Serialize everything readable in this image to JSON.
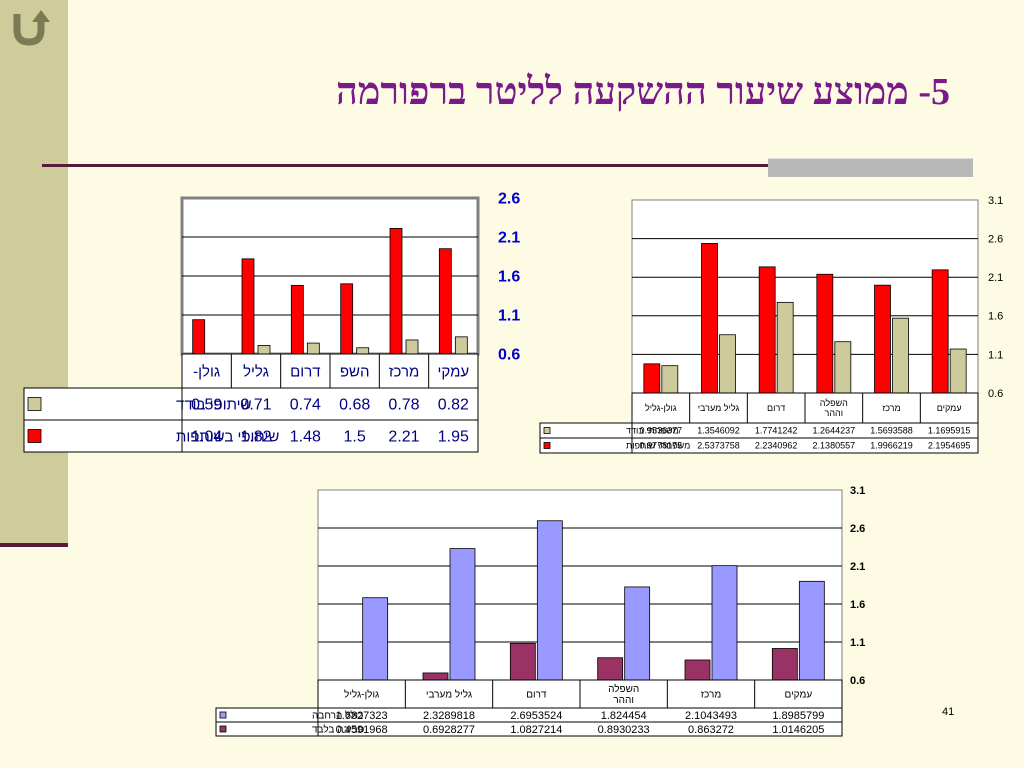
{
  "slide": {
    "title": "5- ממוצע שיעור ההשקעה לליטר ברפורמה",
    "page_number": "41",
    "back_icon": "u-turn-arrow-icon"
  },
  "colors": {
    "red": "#ff0000",
    "beige": "#cdcb9c",
    "lavender": "#9999ff",
    "maroon": "#993366",
    "title": "#7a1a8a"
  },
  "chart_data": [
    {
      "type": "bar",
      "categories": [
        "עמקי",
        "מרכז",
        "השפ",
        "דרום",
        "גליל",
        "גולן-"
      ],
      "series": [
        {
          "name": "שיתופי בודד",
          "values": [
            0.82,
            0.78,
            0.68,
            0.74,
            0.71,
            0.59
          ],
          "value_labels": [
            "0.82",
            "0.78",
            "0.68",
            "0.74",
            "0.71",
            "0.59"
          ]
        },
        {
          "name": "שיתופי בשותפות",
          "values": [
            1.95,
            2.21,
            1.5,
            1.48,
            1.82,
            1.04
          ],
          "value_labels": [
            "1.95",
            "2.21",
            "1.5",
            "1.48",
            "1.82",
            "1.04"
          ]
        }
      ],
      "yticks": [
        "2.6",
        "2.1",
        "1.6",
        "1.1",
        "0.6"
      ],
      "ylim": [
        0.6,
        2.6
      ],
      "legend": "data-table-left",
      "grid": true
    },
    {
      "type": "bar",
      "categories": [
        "עמקים",
        "מרכז",
        "השפלה וההר",
        "דרום",
        "גליל מערבי",
        "גולן-גליל"
      ],
      "series": [
        {
          "name": "משפחתי בודד",
          "values": [
            1.1695915,
            1.5693588,
            1.2644237,
            1.7741242,
            1.3546092,
            0.9536377
          ],
          "value_labels": [
            "1.1695915",
            "1.5693588",
            "1.2644237",
            "1.7741242",
            "1.3546092",
            "0.9536377"
          ]
        },
        {
          "name": "משפחתי שותפות",
          "values": [
            2.1954695,
            1.9966219,
            2.1380557,
            2.2340962,
            2.5373758,
            0.9778175
          ],
          "value_labels": [
            "2.1954695",
            "1.9966219",
            "2.1380557",
            "2.2340962",
            "2.5373758",
            "0.9778175"
          ]
        }
      ],
      "yticks": [
        "3.1",
        "2.6",
        "2.1",
        "1.6",
        "1.1",
        "0.6"
      ],
      "ylim": [
        0.6,
        3.1
      ],
      "legend": "data-table-left",
      "grid": true
    },
    {
      "type": "bar",
      "categories": [
        "עמקים",
        "מרכז",
        "השפלה וההר",
        "דרום",
        "גליל מערבי",
        "גולן-גליל"
      ],
      "series": [
        {
          "name": "כולל הרחבה",
          "values": [
            1.8985799,
            2.1043493,
            1.824454,
            2.6953524,
            2.3289818,
            1.6827323
          ],
          "value_labels": [
            "1.8985799",
            "2.1043493",
            "1.824454",
            "2.6953524",
            "2.3289818",
            "1.6827323"
          ]
        },
        {
          "name": "סביבה בלבד",
          "values": [
            1.0146205,
            0.863272,
            0.8930233,
            1.0827214,
            0.6928277,
            0.4591968
          ],
          "value_labels": [
            "1.0146205",
            "0.863272",
            "0.8930233",
            "1.0827214",
            "0.6928277",
            "0.4591968"
          ]
        }
      ],
      "yticks": [
        "3.1",
        "2.6",
        "2.1",
        "1.6",
        "1.1",
        "0.6"
      ],
      "ylim": [
        0.6,
        3.1
      ],
      "legend": "data-table-left",
      "grid": true
    }
  ]
}
